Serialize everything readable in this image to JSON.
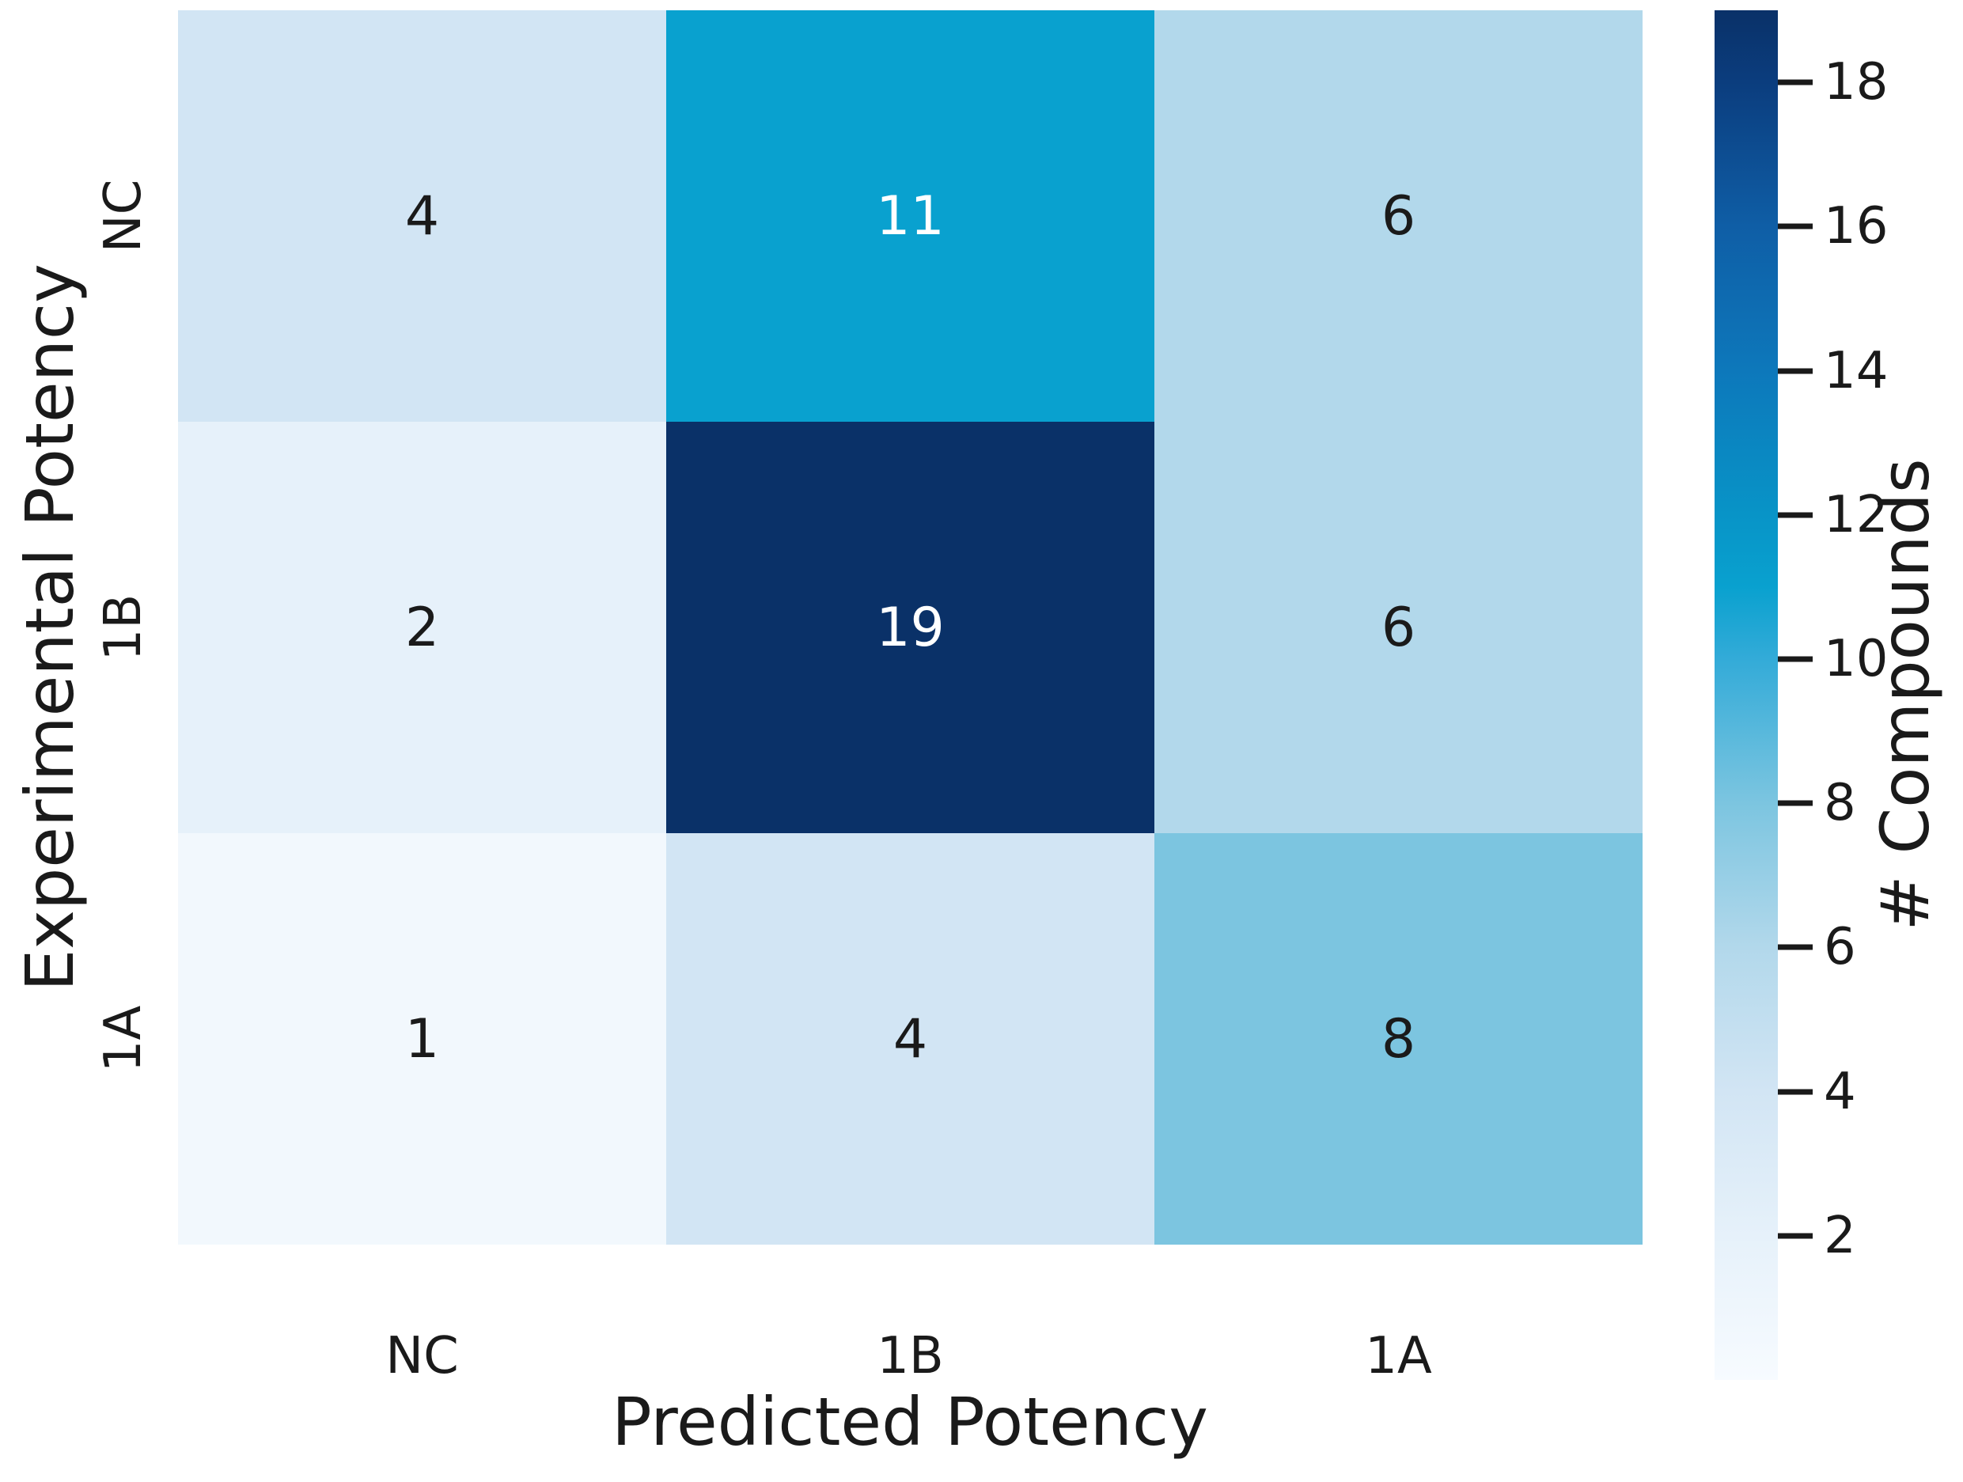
{
  "figure": {
    "background": "#ffffff",
    "text_color": "#1a1a1a"
  },
  "chart_data": {
    "type": "heatmap",
    "title": "",
    "xlabel": "Predicted Potency",
    "ylabel": "Experimental Potency",
    "x_categories": [
      "NC",
      "1B",
      "1A"
    ],
    "y_categories": [
      "NC",
      "1B",
      "1A"
    ],
    "values": [
      [
        4,
        11,
        6
      ],
      [
        2,
        19,
        6
      ],
      [
        1,
        4,
        8
      ]
    ],
    "cell_colors": [
      [
        "#d2e5f4",
        "#09a1cf",
        "#b2d8eb"
      ],
      [
        "#e6f1fa",
        "#0a3168",
        "#b2d8eb"
      ],
      [
        "#f2f8fd",
        "#d2e5f4",
        "#7cc5e0"
      ]
    ],
    "cell_text_colors": [
      [
        "#1a1a1a",
        "#ffffff",
        "#1a1a1a"
      ],
      [
        "#1a1a1a",
        "#ffffff",
        "#1a1a1a"
      ],
      [
        "#1a1a1a",
        "#1a1a1a",
        "#1a1a1a"
      ]
    ],
    "grid_on": false,
    "legend_position": "none",
    "colorbar": {
      "label": "# Compounds",
      "vmin": 0,
      "vmax": 19,
      "ticks": [
        2,
        4,
        6,
        8,
        10,
        12,
        14,
        16,
        18
      ],
      "gradient": [
        {
          "v": 0,
          "c": "#f7fbff"
        },
        {
          "v": 2,
          "c": "#e6f1fa"
        },
        {
          "v": 4,
          "c": "#d2e5f4"
        },
        {
          "v": 6,
          "c": "#b2d8eb"
        },
        {
          "v": 8,
          "c": "#7cc5e0"
        },
        {
          "v": 10,
          "c": "#33abd8"
        },
        {
          "v": 11,
          "c": "#09a1cf"
        },
        {
          "v": 12,
          "c": "#0894c7"
        },
        {
          "v": 14,
          "c": "#0d78bb"
        },
        {
          "v": 16,
          "c": "#0f5ea6"
        },
        {
          "v": 18,
          "c": "#0b3d7e"
        },
        {
          "v": 19,
          "c": "#0a3168"
        }
      ]
    }
  }
}
